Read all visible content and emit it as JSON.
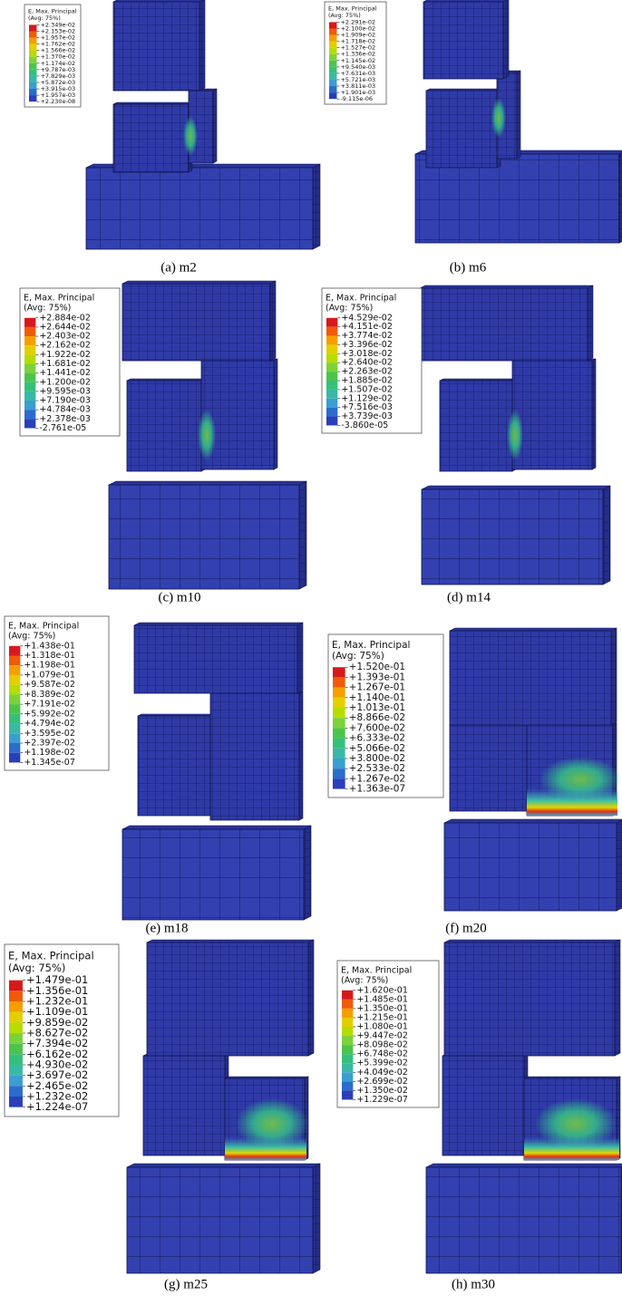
{
  "panels": [
    {
      "caption": "(a) m2",
      "legend": {
        "title": "E, Max. Principal",
        "subtitle": "(Avg: 75%)",
        "levels": [
          "+2.349e-02",
          "+2.153e-02",
          "+1.957e-02",
          "+1.762e-02",
          "+1.566e-02",
          "+1.370e-02",
          "+1.174e-02",
          "+9.787e-03",
          "+7.829e-03",
          "+5.872e-03",
          "+3.915e-03",
          "+1.957e-03",
          "+2.230e-08"
        ]
      }
    },
    {
      "caption": "(b) m6",
      "legend": {
        "title": "E, Max. Principal",
        "subtitle": "(Avg: 75%)",
        "levels": [
          "+2.291e-02",
          "+2.100e-02",
          "+1.909e-02",
          "+1.718e-02",
          "+1.527e-02",
          "+1.336e-02",
          "+1.145e-02",
          "+9.540e-03",
          "+7.631e-03",
          "+5.721e-03",
          "+3.811e-03",
          "+1.901e-03",
          "-9.115e-06"
        ]
      }
    },
    {
      "caption": "(c) m10",
      "legend": {
        "title": "E, Max. Principal",
        "subtitle": "(Avg: 75%)",
        "levels": [
          "+2.884e-02",
          "+2.644e-02",
          "+2.403e-02",
          "+2.162e-02",
          "+1.922e-02",
          "+1.681e-02",
          "+1.441e-02",
          "+1.200e-02",
          "+9.595e-03",
          "+7.190e-03",
          "+4.784e-03",
          "+2.378e-03",
          "-2.761e-05"
        ]
      }
    },
    {
      "caption": "(d) m14",
      "legend": {
        "title": "E, Max. Principal",
        "subtitle": "(Avg: 75%)",
        "levels": [
          "+4.529e-02",
          "+4.151e-02",
          "+3.774e-02",
          "+3.396e-02",
          "+3.018e-02",
          "+2.640e-02",
          "+2.263e-02",
          "+1.885e-02",
          "+1.507e-02",
          "+1.129e-02",
          "+7.516e-03",
          "+3.739e-03",
          "-3.860e-05"
        ]
      }
    },
    {
      "caption": "(e) m18",
      "legend": {
        "title": "E, Max. Principal",
        "subtitle": "(Avg: 75%)",
        "levels": [
          "+1.438e-01",
          "+1.318e-01",
          "+1.198e-01",
          "+1.079e-01",
          "+9.587e-02",
          "+8.389e-02",
          "+7.191e-02",
          "+5.992e-02",
          "+4.794e-02",
          "+3.595e-02",
          "+2.397e-02",
          "+1.198e-02",
          "+1.345e-07"
        ]
      }
    },
    {
      "caption": "(f) m20",
      "legend": {
        "title": "E, Max. Principal",
        "subtitle": "(Avg: 75%)",
        "levels": [
          "+1.520e-01",
          "+1.393e-01",
          "+1.267e-01",
          "+1.140e-01",
          "+1.013e-01",
          "+8.866e-02",
          "+7.600e-02",
          "+6.333e-02",
          "+5.066e-02",
          "+3.800e-02",
          "+2.533e-02",
          "+1.267e-02",
          "+1.363e-07"
        ]
      }
    },
    {
      "caption": "(g) m25",
      "legend": {
        "title": "E, Max. Principal",
        "subtitle": "(Avg: 75%)",
        "levels": [
          "+1.479e-01",
          "+1.356e-01",
          "+1.232e-01",
          "+1.109e-01",
          "+9.859e-02",
          "+8.627e-02",
          "+7.394e-02",
          "+6.162e-02",
          "+4.930e-02",
          "+3.697e-02",
          "+2.465e-02",
          "+1.232e-02",
          "+1.224e-07"
        ]
      }
    },
    {
      "caption": "(h) m30",
      "legend": {
        "title": "E, Max. Principal",
        "subtitle": "(Avg: 75%)",
        "levels": [
          "+1.620e-01",
          "+1.485e-01",
          "+1.350e-01",
          "+1.215e-01",
          "+1.080e-01",
          "+9.447e-02",
          "+8.098e-02",
          "+6.748e-02",
          "+5.399e-02",
          "+4.049e-02",
          "+2.699e-02",
          "+1.350e-02",
          "+1.229e-07"
        ]
      }
    }
  ]
}
